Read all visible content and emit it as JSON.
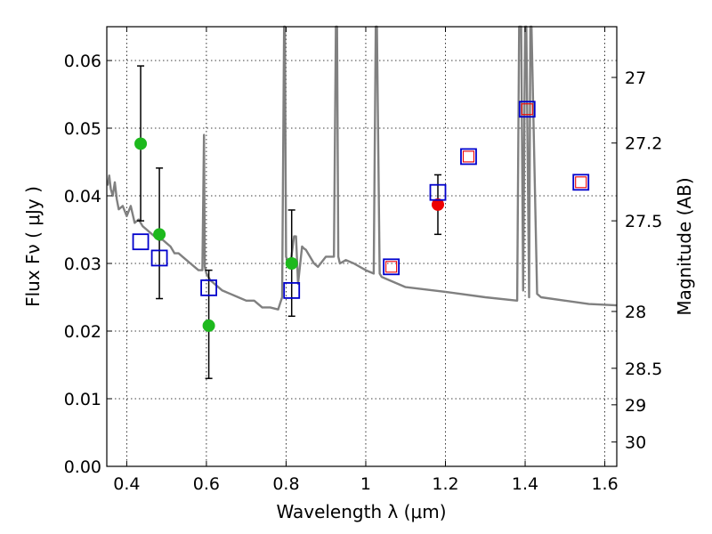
{
  "chart_data": {
    "type": "scatter",
    "title": "",
    "xlabel": "Wavelength  λ (μm)",
    "ylabel": "Flux  Fν  ( μJy )",
    "ylabel_right": "Magnitude (AB)",
    "xlim": [
      0.35,
      1.63
    ],
    "ylim": [
      0.0,
      0.065
    ],
    "grid": true,
    "x_ticks": [
      0.4,
      0.6,
      0.8,
      1.0,
      1.2,
      1.4,
      1.6
    ],
    "x_tick_labels": [
      "0.4",
      "0.6",
      "0.8",
      "1",
      "1.2",
      "1.4",
      "1.6"
    ],
    "y_ticks": [
      0.0,
      0.01,
      0.02,
      0.03,
      0.04,
      0.05,
      0.06
    ],
    "y_tick_labels": [
      "0.00",
      "0.01",
      "0.02",
      "0.03",
      "0.04",
      "0.05",
      "0.06"
    ],
    "right_ticks": [
      {
        "label": "27",
        "flux": 0.0575
      },
      {
        "label": "27.2",
        "flux": 0.0478
      },
      {
        "label": "27.5",
        "flux": 0.0363
      },
      {
        "label": "28",
        "flux": 0.0229
      },
      {
        "label": "28.5",
        "flux": 0.0145
      },
      {
        "label": "29",
        "flux": 0.0091
      },
      {
        "label": "30",
        "flux": 0.0036
      }
    ],
    "colors": {
      "sed": "#808080",
      "model": "#0000cc",
      "photometry": "#1db91d",
      "detection": "#ee0000",
      "model_inner": "#ee0000",
      "errorbar": "#000000"
    },
    "series": [
      {
        "name": "SED model spectrum",
        "kind": "line",
        "x": [
          0.352,
          0.356,
          0.36,
          0.365,
          0.37,
          0.375,
          0.38,
          0.39,
          0.4,
          0.41,
          0.42,
          0.43,
          0.44,
          0.45,
          0.46,
          0.47,
          0.48,
          0.49,
          0.5,
          0.51,
          0.52,
          0.53,
          0.54,
          0.55,
          0.56,
          0.57,
          0.58,
          0.59,
          0.594,
          0.596,
          0.598,
          0.6,
          0.61,
          0.62,
          0.64,
          0.66,
          0.68,
          0.7,
          0.72,
          0.74,
          0.76,
          0.78,
          0.79,
          0.795,
          0.797,
          0.8,
          0.81,
          0.82,
          0.825,
          0.83,
          0.84,
          0.845,
          0.85,
          0.86,
          0.87,
          0.88,
          0.9,
          0.92,
          0.925,
          0.928,
          0.931,
          0.935,
          0.95,
          0.97,
          1.0,
          1.02,
          1.025,
          1.028,
          1.035,
          1.04,
          1.06,
          1.1,
          1.2,
          1.3,
          1.38,
          1.385,
          1.39,
          1.395,
          1.4,
          1.403,
          1.41,
          1.413,
          1.416,
          1.43,
          1.44,
          1.5,
          1.56,
          1.63
        ],
        "y": [
          0.0415,
          0.043,
          0.041,
          0.04,
          0.042,
          0.0395,
          0.038,
          0.0385,
          0.037,
          0.0385,
          0.036,
          0.0365,
          0.0355,
          0.035,
          0.0345,
          0.034,
          0.0335,
          0.0335,
          0.033,
          0.0325,
          0.0315,
          0.0315,
          0.031,
          0.0305,
          0.03,
          0.0295,
          0.029,
          0.029,
          0.049,
          0.0295,
          0.029,
          0.0285,
          0.0275,
          0.027,
          0.026,
          0.0255,
          0.025,
          0.0245,
          0.0245,
          0.0235,
          0.0235,
          0.0232,
          0.025,
          0.07,
          0.07,
          0.031,
          0.0295,
          0.034,
          0.034,
          0.027,
          0.0325,
          0.0322,
          0.032,
          0.031,
          0.03,
          0.0295,
          0.031,
          0.031,
          0.07,
          0.07,
          0.031,
          0.03,
          0.0305,
          0.03,
          0.029,
          0.0285,
          0.07,
          0.07,
          0.0285,
          0.028,
          0.0275,
          0.0265,
          0.0258,
          0.025,
          0.0245,
          0.07,
          0.07,
          0.026,
          0.07,
          0.07,
          0.025,
          0.07,
          0.07,
          0.0255,
          0.025,
          0.0245,
          0.024,
          0.0238
        ]
      },
      {
        "name": "Model photometry",
        "kind": "open-square",
        "x": [
          0.435,
          0.482,
          0.606,
          0.814,
          1.064,
          1.181,
          1.258,
          1.405,
          1.54
        ],
        "y": [
          0.0332,
          0.0308,
          0.0264,
          0.026,
          0.0295,
          0.0405,
          0.0458,
          0.0528,
          0.042
        ]
      },
      {
        "name": "Model photometry inner markers",
        "kind": "open-square-small",
        "x": [
          1.064,
          1.258,
          1.405,
          1.54
        ],
        "y": [
          0.0295,
          0.0458,
          0.0528,
          0.042
        ]
      },
      {
        "name": "Observed photometry",
        "kind": "dot",
        "x": [
          0.435,
          0.482,
          0.606,
          0.814
        ],
        "y": [
          0.0477,
          0.0343,
          0.0208,
          0.03
        ]
      },
      {
        "name": "Observed detection",
        "kind": "dot",
        "x": [
          1.181
        ],
        "y": [
          0.0387
        ]
      },
      {
        "name": "Error bars",
        "kind": "errorbar",
        "x": [
          0.435,
          0.482,
          0.606,
          0.814,
          1.181
        ],
        "low": [
          0.0363,
          0.0248,
          0.013,
          0.0222,
          0.0343
        ],
        "high": [
          0.0592,
          0.0441,
          0.029,
          0.0379,
          0.0431
        ]
      }
    ]
  }
}
